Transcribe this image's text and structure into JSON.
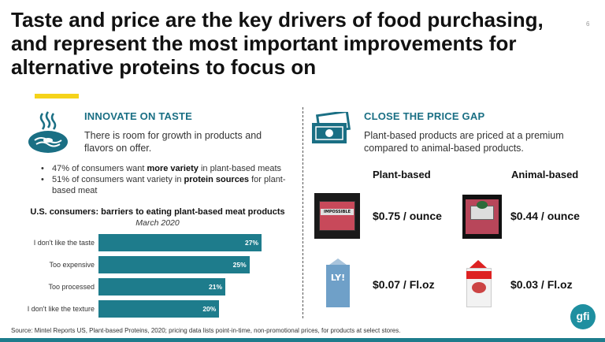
{
  "title": "Taste and price are the key drivers of food purchasing, and represent the most important improvements for alternative proteins to focus on",
  "page_number": "6",
  "left": {
    "heading": "INNOVATE ON TASTE",
    "description": "There is room for growth in products and flavors on offer.",
    "bullet1": {
      "pre": "47% of consumers want ",
      "bold": "more variety",
      "post": " in plant-based meats"
    },
    "bullet2": {
      "pre": "51% of consumers want variety in ",
      "bold": "protein sources",
      "post": " for plant-based meat"
    }
  },
  "right": {
    "heading": "CLOSE THE PRICE GAP",
    "description": "Plant-based products are priced at a premium compared to animal-based products.",
    "col_plant": "Plant-based",
    "col_animal": "Animal-based",
    "plant_meat_price": "$0.75 / ounce",
    "animal_meat_price": "$0.44 / ounce",
    "plant_milk_price": "$0.07 / Fl.oz",
    "animal_milk_price": "$0.03 / Fl.oz",
    "impossible_brand": "IMPOSSIBLE",
    "oatly_brand": "LY!"
  },
  "chart_data": {
    "type": "bar",
    "orientation": "horizontal",
    "title": "U.S. consumers: barriers to eating plant-based meat products",
    "subtitle": "March 2020",
    "categories": [
      "I don't like the taste",
      "Too expensive",
      "Too processed",
      "I don't like the texture"
    ],
    "values": [
      27,
      25,
      21,
      20
    ],
    "value_labels": [
      "27%",
      "25%",
      "21%",
      "20%"
    ],
    "xlim": [
      0,
      30
    ],
    "color": "#1e7c8c"
  },
  "footer": "Source: Mintel Reports US, Plant-based Proteins, 2020; pricing data lists point-in-time, non-promotional prices, for products at select stores.",
  "logo_text": "gfi",
  "colors": {
    "accent": "#1a6f84",
    "bar": "#1e7c8c",
    "highlight": "#f5d31a"
  }
}
